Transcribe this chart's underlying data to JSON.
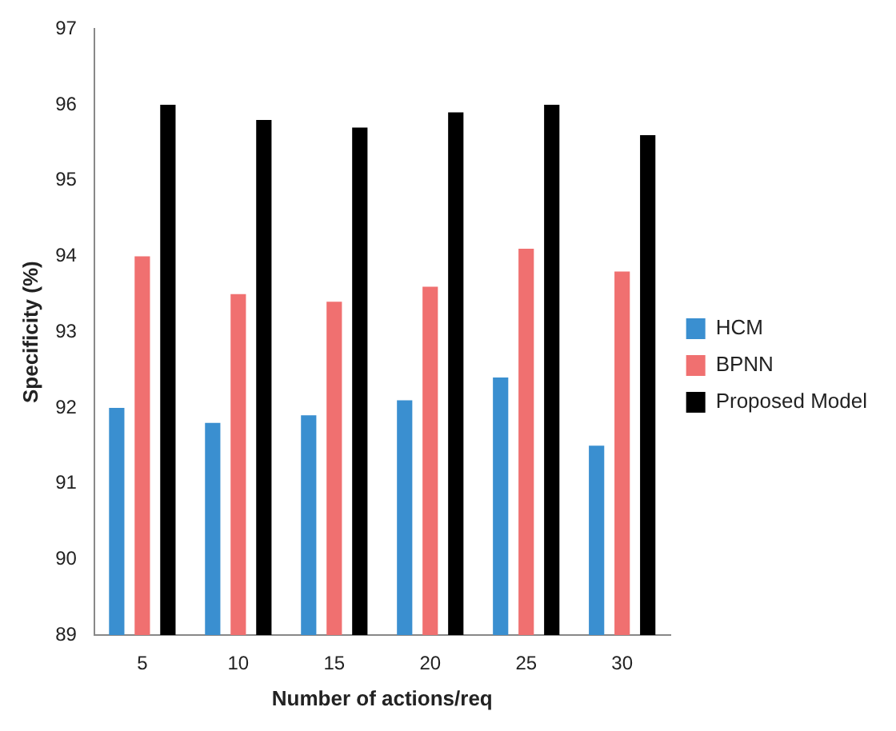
{
  "chart_data": {
    "type": "bar",
    "xlabel": "Number of actions/req",
    "ylabel": "Specificity (%)",
    "categories": [
      "5",
      "10",
      "15",
      "20",
      "25",
      "30"
    ],
    "series": [
      {
        "name": "HCM",
        "color": "#3a8fd0",
        "values": [
          92.0,
          91.8,
          91.9,
          92.1,
          92.4,
          91.5
        ]
      },
      {
        "name": "BPNN",
        "color": "#f07070",
        "values": [
          94.0,
          93.5,
          93.4,
          93.6,
          94.1,
          93.8
        ]
      },
      {
        "name": "Proposed Model",
        "color": "#000000",
        "values": [
          96.0,
          95.8,
          95.7,
          95.9,
          96.0,
          95.6
        ]
      }
    ],
    "ylim": [
      89,
      97
    ],
    "yticks": [
      89,
      90,
      91,
      92,
      93,
      94,
      95,
      96,
      97
    ],
    "grid": false,
    "legend": "right"
  }
}
